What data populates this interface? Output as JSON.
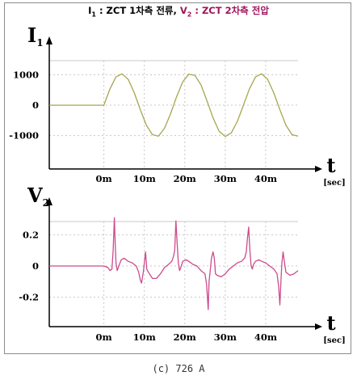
{
  "header": {
    "i_sym": "I",
    "i_sub": "1",
    "i_desc": " : ZCT 1차측 전류, ",
    "v_sym": "V",
    "v_sub": "2",
    "v_desc": " : ZCT 2차측 전압"
  },
  "caption": "(c) 726 A",
  "colors": {
    "current_line": "#a6a64f",
    "voltage_line": "#cc4c8c",
    "voltage_text": "#a0145a",
    "grid": "#c8c8c8",
    "axis": "#000000"
  },
  "chart_data": [
    {
      "type": "line",
      "ylabel": "I",
      "ylabel_sub": "1",
      "xlabel": "t",
      "xunit": "[sec]",
      "x_ticks": [
        {
          "value": 0,
          "label": "0m"
        },
        {
          "value": 10,
          "label": "10m"
        },
        {
          "value": 20,
          "label": "20m"
        },
        {
          "value": 30,
          "label": "30m"
        },
        {
          "value": 40,
          "label": "40m"
        }
      ],
      "y_ticks": [
        {
          "value": 1000,
          "label": "1000"
        },
        {
          "value": 0,
          "label": "0"
        },
        {
          "value": -1000,
          "label": "-1000"
        }
      ],
      "xlim": [
        -13.5,
        48
      ],
      "ylim": [
        -2100,
        2050
      ],
      "grid": true,
      "series": [
        {
          "x": [
            -13.5,
            0,
            1.5,
            3,
            4.5,
            6,
            7.5,
            9,
            10.5,
            12,
            13.5,
            15,
            16.5,
            18,
            19.5,
            21,
            22.5,
            24,
            25.5,
            27,
            28.5,
            30,
            31.5,
            33,
            34.5,
            36,
            37.5,
            39,
            40.5,
            42,
            43.5,
            45,
            46.5,
            48
          ],
          "values": [
            0,
            0,
            530,
            930,
            1030,
            850,
            410,
            -150,
            -660,
            -970,
            -1020,
            -760,
            -280,
            290,
            770,
            1020,
            980,
            670,
            140,
            -420,
            -860,
            -1030,
            -910,
            -530,
            0,
            540,
            930,
            1030,
            850,
            400,
            -150,
            -660,
            -970,
            -1020
          ]
        }
      ]
    },
    {
      "type": "line",
      "ylabel": "V",
      "ylabel_sub": "2",
      "xlabel": "t",
      "xunit": "[sec]",
      "x_ticks": [
        {
          "value": 0,
          "label": "0m"
        },
        {
          "value": 10,
          "label": "10m"
        },
        {
          "value": 20,
          "label": "20m"
        },
        {
          "value": 30,
          "label": "30m"
        },
        {
          "value": 40,
          "label": "40m"
        }
      ],
      "y_ticks": [
        {
          "value": 0.2,
          "label": "0.2"
        },
        {
          "value": 0,
          "label": "0"
        },
        {
          "value": -0.2,
          "label": "-0.2"
        }
      ],
      "xlim": [
        -13.5,
        48
      ],
      "ylim": [
        -0.39,
        0.4
      ],
      "grid": true,
      "series": [
        {
          "x": [
            -13.5,
            0,
            1.0,
            1.5,
            2.0,
            2.3,
            2.6,
            2.8,
            3.0,
            3.3,
            3.7,
            4.3,
            5,
            6,
            7,
            8,
            8.6,
            9.0,
            9.3,
            9.8,
            10.0,
            10.3,
            10.6,
            11,
            11.5,
            12,
            13,
            14,
            15,
            16,
            16.8,
            17.2,
            17.5,
            17.8,
            18.1,
            18.4,
            18.7,
            19.0,
            19.5,
            20.3,
            21,
            22,
            23,
            24,
            25,
            25.4,
            25.8,
            26.0,
            26.3,
            26.6,
            27.0,
            27.3,
            27.6,
            28,
            29,
            30,
            31,
            32,
            33,
            34,
            34.8,
            35.2,
            35.5,
            35.8,
            36.1,
            36.4,
            36.7,
            37.0,
            37.5,
            38.3,
            39,
            40,
            41,
            42,
            42.8,
            43.2,
            43.5,
            43.8,
            44.0,
            44.3,
            44.6,
            45,
            46,
            47,
            48
          ],
          "values": [
            0,
            0,
            -0.01,
            -0.03,
            -0.02,
            0.1,
            0.31,
            0.15,
            0.02,
            -0.03,
            0.0,
            0.04,
            0.05,
            0.03,
            0.02,
            0.0,
            -0.04,
            -0.09,
            -0.11,
            -0.03,
            0.02,
            0.09,
            -0.02,
            -0.04,
            -0.06,
            -0.08,
            -0.08,
            -0.05,
            -0.01,
            0.01,
            0.03,
            0.06,
            0.1,
            0.29,
            0.15,
            0.02,
            -0.03,
            -0.01,
            0.03,
            0.04,
            0.03,
            0.01,
            0.0,
            -0.03,
            -0.05,
            -0.12,
            -0.28,
            -0.1,
            -0.03,
            0.05,
            0.09,
            0.05,
            -0.05,
            -0.06,
            -0.07,
            -0.05,
            -0.02,
            0.0,
            0.02,
            0.03,
            0.05,
            0.09,
            0.18,
            0.25,
            0.1,
            0.0,
            -0.02,
            0.01,
            0.03,
            0.04,
            0.03,
            0.02,
            0.0,
            -0.02,
            -0.05,
            -0.13,
            -0.25,
            -0.08,
            0.02,
            0.09,
            0.03,
            -0.04,
            -0.06,
            -0.05,
            -0.03
          ]
        }
      ]
    }
  ]
}
